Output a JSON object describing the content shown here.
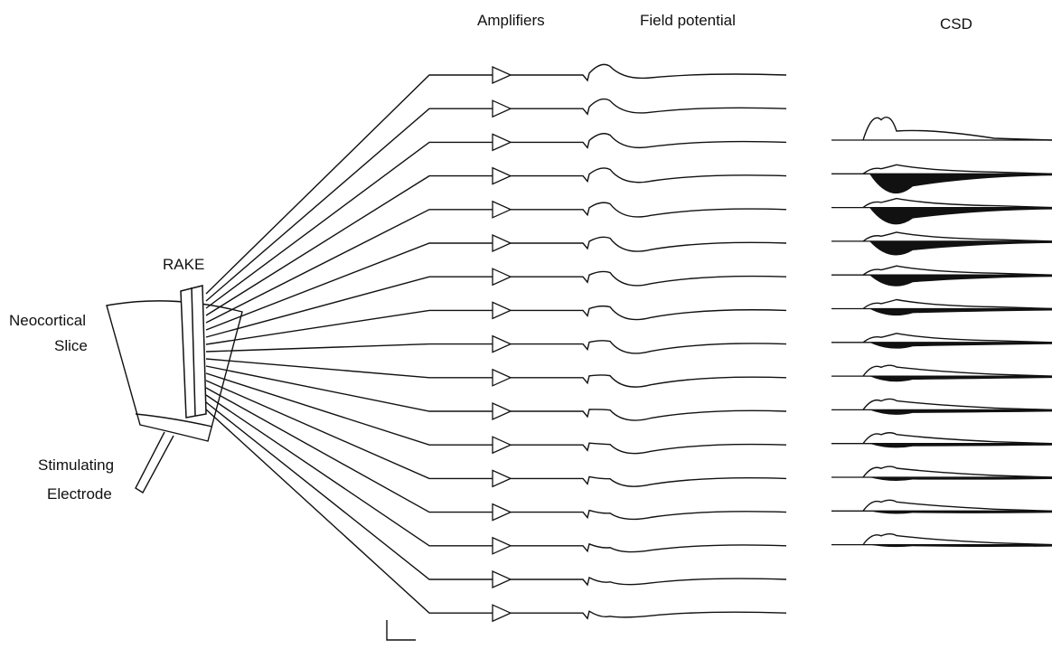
{
  "header": {
    "amplifiers": "Amplifiers",
    "field_potential": "Field potential",
    "csd": "CSD"
  },
  "labels": {
    "rake": "RAKE",
    "slice": [
      "Neocortical",
      "Slice"
    ],
    "electrode": [
      "Stimulating",
      "Electrode"
    ]
  }
}
